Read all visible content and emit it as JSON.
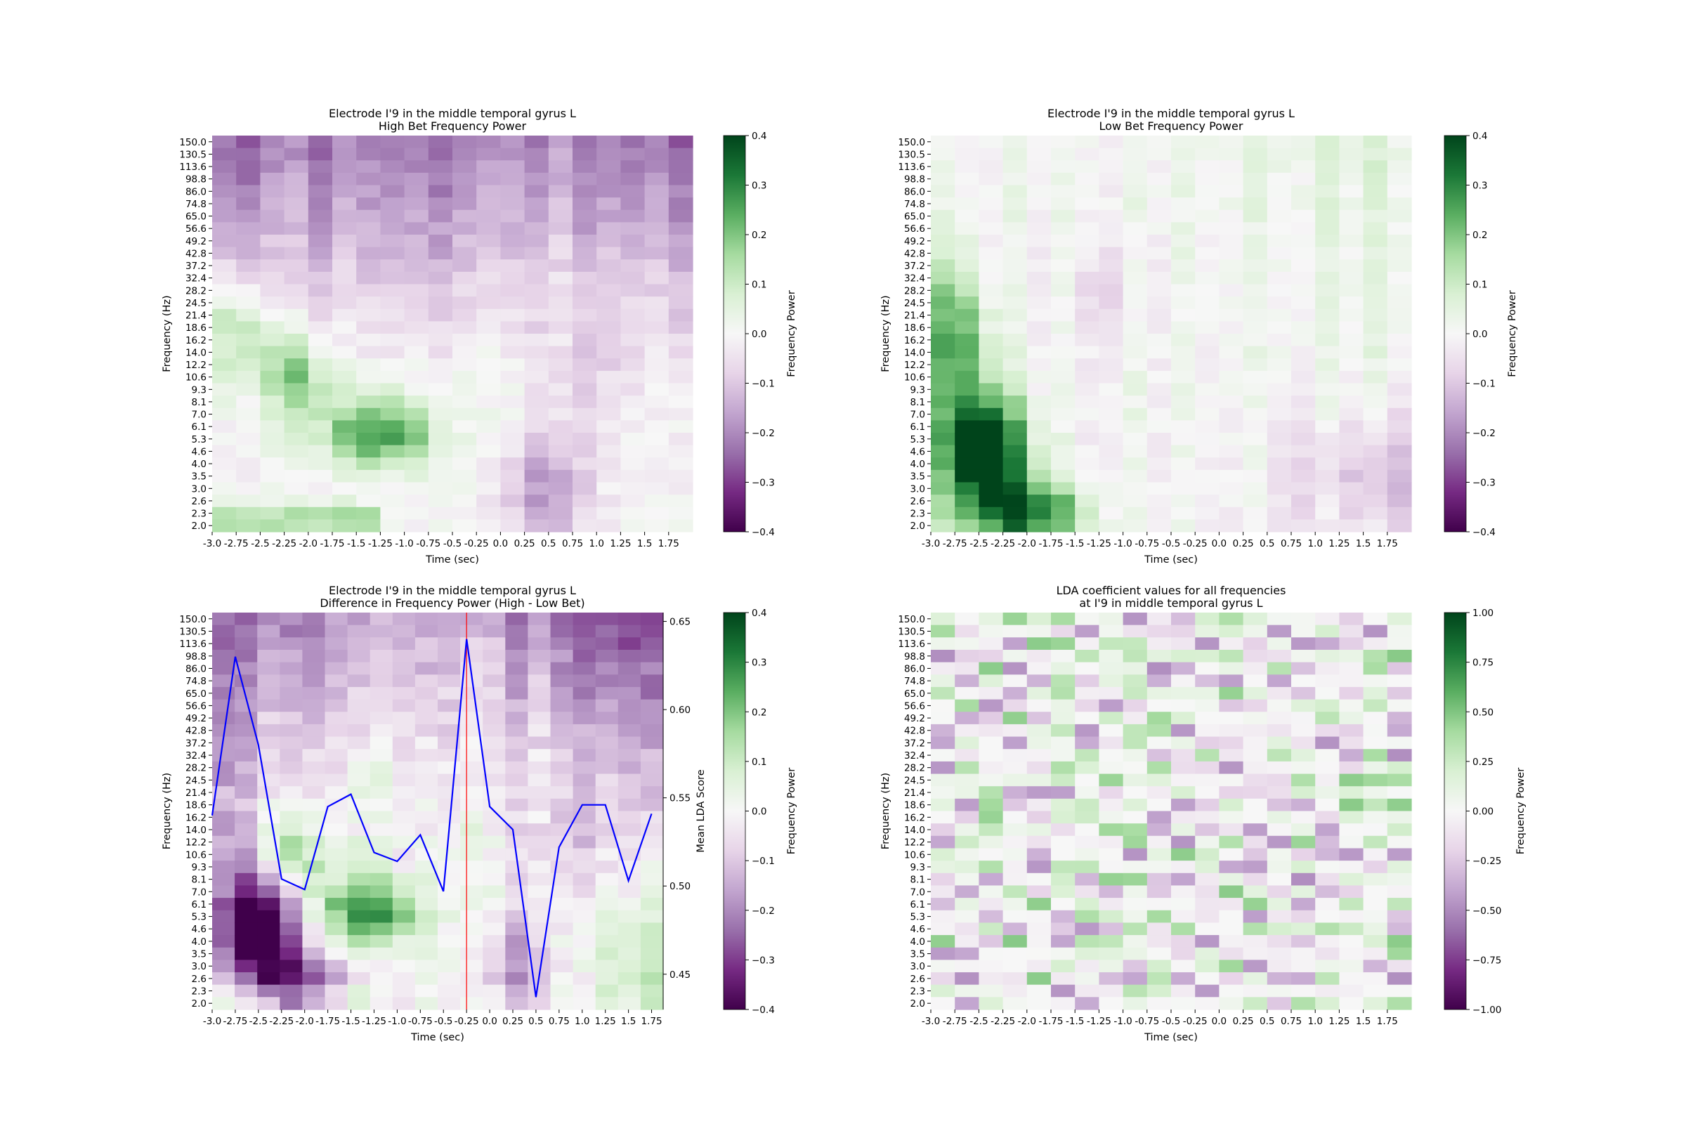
{
  "chart_data": [
    {
      "type": "heatmap",
      "title": "Electrode I'9 in the middle temporal gyrus L",
      "subtitle": "High Bet Frequency Power",
      "xlabel": "Time (sec)",
      "ylabel": "Frequency (Hz)",
      "x_ticks": [
        "-3.0",
        "-2.75",
        "-2.5",
        "-2.25",
        "-2.0",
        "-1.75",
        "-1.5",
        "-1.25",
        "-1.0",
        "-0.75",
        "-0.5",
        "-0.25",
        "0.0",
        "0.25",
        "0.5",
        "0.75",
        "1.0",
        "1.25",
        "1.5",
        "1.75"
      ],
      "y_ticks": [
        "150.0",
        "130.5",
        "113.6",
        "98.8",
        "86.0",
        "74.8",
        "65.0",
        "56.6",
        "49.2",
        "42.8",
        "37.2",
        "32.4",
        "28.2",
        "24.5",
        "21.4",
        "18.6",
        "16.2",
        "14.0",
        "12.2",
        "10.6",
        "9.3",
        "8.1",
        "7.0",
        "6.1",
        "5.3",
        "4.6",
        "4.0",
        "3.5",
        "3.0",
        "2.6",
        "2.3",
        "2.0"
      ],
      "colorbar": {
        "label": "Frequency Power",
        "range": [
          -0.4,
          0.4
        ],
        "ticks": [
          "0.4",
          "0.3",
          "0.2",
          "0.1",
          "0.0",
          "−0.1",
          "−0.2",
          "−0.3",
          "−0.4"
        ],
        "colormap": "PRGn"
      },
      "pattern": "high"
    },
    {
      "type": "heatmap",
      "title": "Electrode I'9 in the middle temporal gyrus L",
      "subtitle": "Low Bet Frequency Power",
      "xlabel": "Time (sec)",
      "ylabel": "Frequency (Hz)",
      "x_ticks": [
        "-3.0",
        "-2.75",
        "-2.5",
        "-2.25",
        "-2.0",
        "-1.75",
        "-1.5",
        "-1.25",
        "-1.0",
        "-0.75",
        "-0.5",
        "-0.25",
        "0.0",
        "0.25",
        "0.5",
        "0.75",
        "1.0",
        "1.25",
        "1.5",
        "1.75"
      ],
      "y_ticks": [
        "150.0",
        "130.5",
        "113.6",
        "98.8",
        "86.0",
        "74.8",
        "65.0",
        "56.6",
        "49.2",
        "42.8",
        "37.2",
        "32.4",
        "28.2",
        "24.5",
        "21.4",
        "18.6",
        "16.2",
        "14.0",
        "12.2",
        "10.6",
        "9.3",
        "8.1",
        "7.0",
        "6.1",
        "5.3",
        "4.6",
        "4.0",
        "3.5",
        "3.0",
        "2.6",
        "2.3",
        "2.0"
      ],
      "colorbar": {
        "label": "Frequency Power",
        "range": [
          -0.4,
          0.4
        ],
        "ticks": [
          "0.4",
          "0.3",
          "0.2",
          "0.1",
          "0.0",
          "−0.1",
          "−0.2",
          "−0.3",
          "−0.4"
        ],
        "colormap": "PRGn"
      },
      "pattern": "low"
    },
    {
      "type": "heatmap",
      "title": "Electrode I'9 in the middle temporal gyrus L",
      "subtitle": "Difference in Frequency Power (High - Low Bet)",
      "xlabel": "Time (sec)",
      "ylabel": "Frequency (Hz)",
      "y2label": "Mean LDA Score",
      "x_ticks": [
        "-3.0",
        "-2.75",
        "-2.5",
        "-2.25",
        "-2.0",
        "-1.75",
        "-1.5",
        "-1.25",
        "-1.0",
        "-0.75",
        "-0.5",
        "-0.25",
        "0.0",
        "0.25",
        "0.5",
        "0.75",
        "1.0",
        "1.25",
        "1.5",
        "1.75"
      ],
      "y_ticks": [
        "150.0",
        "130.5",
        "113.6",
        "98.8",
        "86.0",
        "74.8",
        "65.0",
        "56.6",
        "49.2",
        "42.8",
        "37.2",
        "32.4",
        "28.2",
        "24.5",
        "21.4",
        "18.6",
        "16.2",
        "14.0",
        "12.2",
        "10.6",
        "9.3",
        "8.1",
        "7.0",
        "6.1",
        "5.3",
        "4.6",
        "4.0",
        "3.5",
        "3.0",
        "2.6",
        "2.3",
        "2.0"
      ],
      "y2_ticks": [
        0.45,
        0.5,
        0.55,
        0.6,
        0.65
      ],
      "y2_tick_labels": [
        "0.45",
        "0.50",
        "0.55",
        "0.60",
        "0.65"
      ],
      "y2_range": [
        0.43,
        0.655
      ],
      "colorbar": {
        "label": "Frequency Power",
        "range": [
          -0.4,
          0.4
        ],
        "ticks": [
          "0.4",
          "0.3",
          "0.2",
          "0.1",
          "0.0",
          "−0.1",
          "−0.2",
          "−0.3",
          "−0.4"
        ],
        "colormap": "PRGn"
      },
      "pattern": "diff",
      "lda_line": {
        "color": "#0000ff",
        "x": [
          -3.0,
          -2.75,
          -2.5,
          -2.25,
          -2.0,
          -1.75,
          -1.5,
          -1.25,
          -1.0,
          -0.75,
          -0.5,
          -0.25,
          0.0,
          0.25,
          0.5,
          0.75,
          1.0,
          1.25,
          1.5,
          1.75
        ],
        "values": [
          0.54,
          0.63,
          0.58,
          0.504,
          0.498,
          0.545,
          0.552,
          0.519,
          0.514,
          0.529,
          0.497,
          0.64,
          0.545,
          0.532,
          0.437,
          0.522,
          0.546,
          0.546,
          0.503,
          0.541
        ]
      },
      "marker_line": {
        "color": "#ff0000",
        "x": -0.25
      }
    },
    {
      "type": "heatmap",
      "title": "LDA coefficient values for all frequencies",
      "subtitle": "at I'9 in middle temporal gyrus L",
      "xlabel": "Time (sec)",
      "ylabel": "Frequency (Hz)",
      "x_ticks": [
        "-3.0",
        "-2.75",
        "-2.5",
        "-2.25",
        "-2.0",
        "-1.75",
        "-1.5",
        "-1.25",
        "-1.0",
        "-0.75",
        "-0.5",
        "-0.25",
        "0.0",
        "0.25",
        "0.5",
        "0.75",
        "1.0",
        "1.25",
        "1.5",
        "1.75"
      ],
      "y_ticks": [
        "150.0",
        "130.5",
        "113.6",
        "98.8",
        "86.0",
        "74.8",
        "65.0",
        "56.6",
        "49.2",
        "42.8",
        "37.2",
        "32.4",
        "28.2",
        "24.5",
        "21.4",
        "18.6",
        "16.2",
        "14.0",
        "12.2",
        "10.6",
        "9.3",
        "8.1",
        "7.0",
        "6.1",
        "5.3",
        "4.6",
        "4.0",
        "3.5",
        "3.0",
        "2.6",
        "2.3",
        "2.0"
      ],
      "colorbar": {
        "label": "Frequency Power",
        "range": [
          -1.0,
          1.0
        ],
        "ticks": [
          "1.00",
          "0.75",
          "0.50",
          "0.25",
          "0.00",
          "−0.25",
          "−0.50",
          "−0.75",
          "−1.00"
        ],
        "colormap": "PRGn"
      },
      "pattern": "lda"
    }
  ]
}
